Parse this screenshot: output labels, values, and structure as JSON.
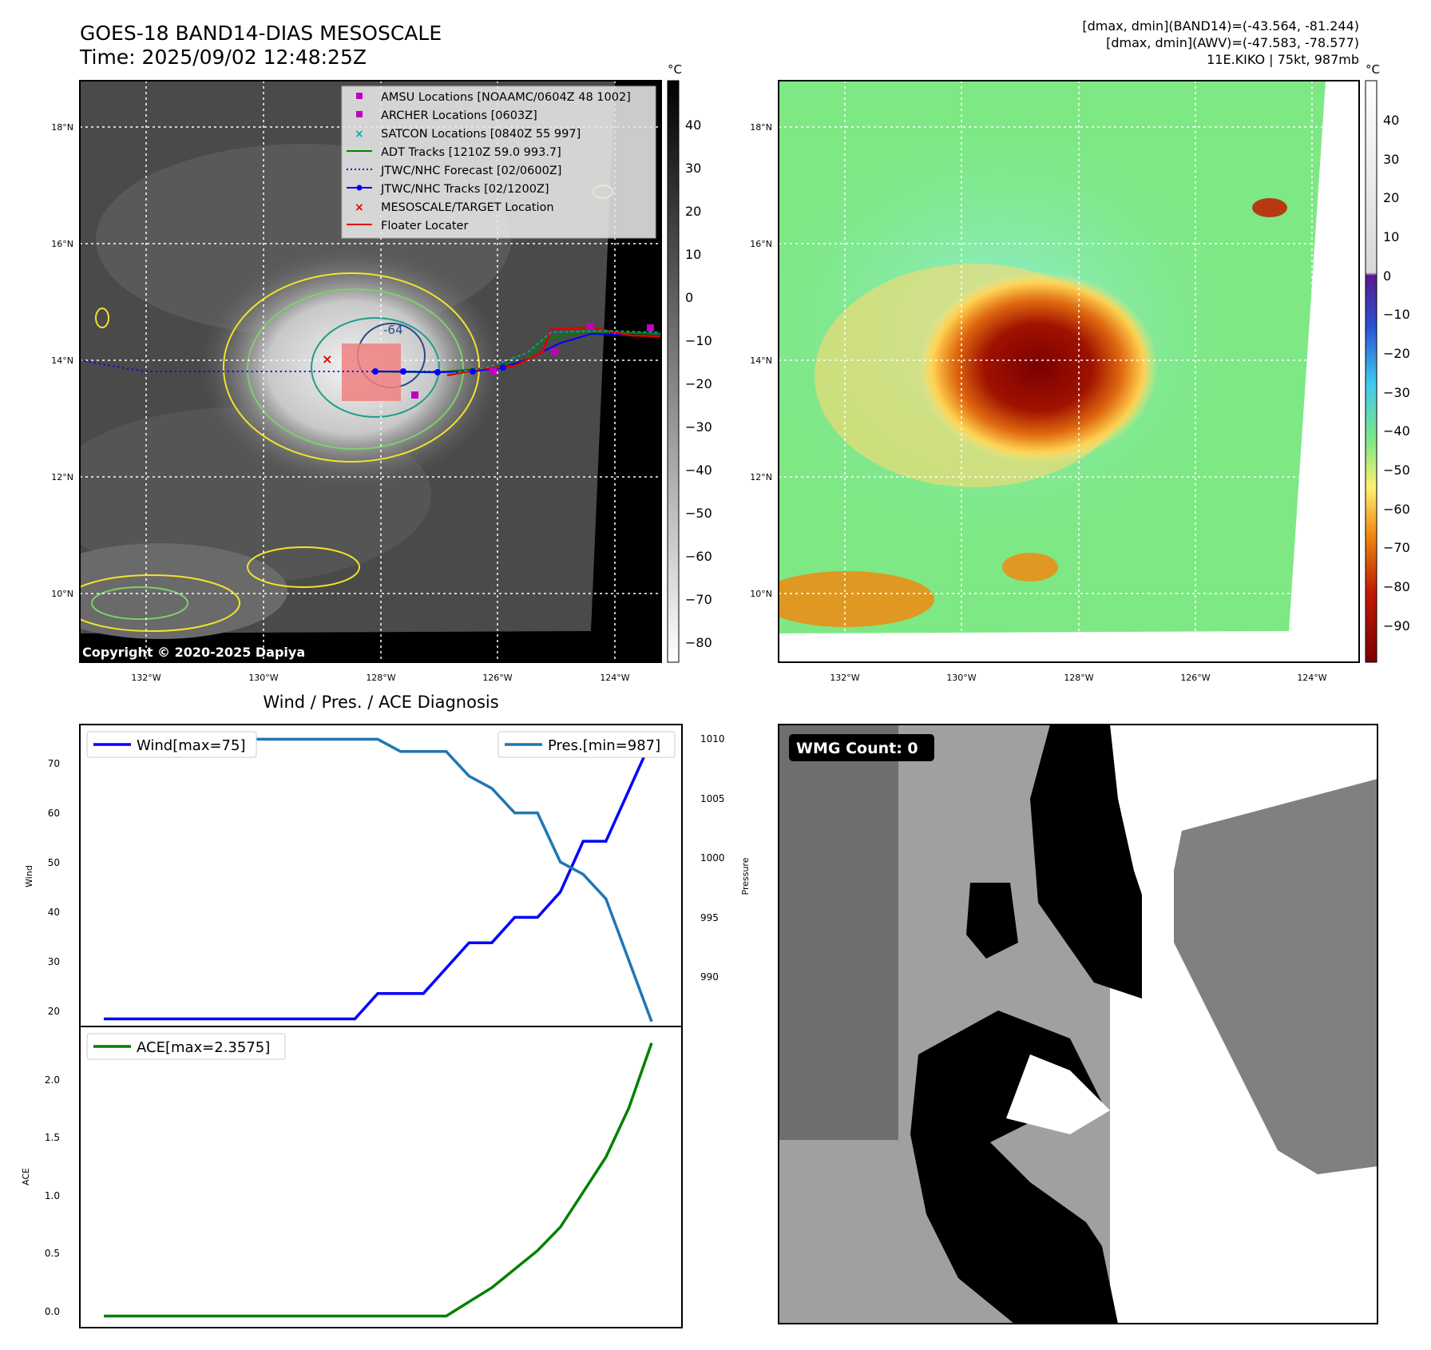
{
  "header": {
    "title_line1": "GOES-18 BAND14-DIAS MESOSCALE",
    "title_line2": "Time: 2025/09/02 12:48:25Z",
    "info_line1": "[dmax, dmin](BAND14)=(-43.564, -81.244)",
    "info_line2": "[dmax, dmin](AWV)=(-47.583, -78.577)",
    "info_line3": "11E.KIKO | 75kt, 987mb"
  },
  "map_ir": {
    "copyright": "Copyright © 2020-2025 Dapiya",
    "lat_labels": [
      "18°N",
      "16°N",
      "14°N",
      "12°N",
      "10°N"
    ],
    "lon_labels": [
      "132°W",
      "130°W",
      "128°W",
      "126°W",
      "124°W"
    ],
    "contour_label": "-64",
    "colorbar_unit": "°C",
    "colorbar_ticks": [
      "40",
      "30",
      "20",
      "10",
      "0",
      "−10",
      "−20",
      "−30",
      "−40",
      "−50",
      "−60",
      "−70",
      "−80"
    ],
    "legend": [
      {
        "label": "AMSU Locations [NOAAMC/0604Z 48 1002]",
        "color": "#c000c0",
        "marker": "square"
      },
      {
        "label": "ARCHER Locations [0603Z]",
        "color": "#c000c0",
        "marker": "square"
      },
      {
        "label": "SATCON Locations [0840Z 55 997]",
        "color": "#00b0b0",
        "marker": "x"
      },
      {
        "label": "ADT Tracks [1210Z 59.0 993.7]",
        "color": "#008000",
        "marker": "line"
      },
      {
        "label": "JTWC/NHC Forecast [02/0600Z]",
        "color": "#0000ff",
        "marker": "dotted"
      },
      {
        "label": "JTWC/NHC Tracks [02/1200Z]",
        "color": "#0000ff",
        "marker": "line-dot"
      },
      {
        "label": "MESOSCALE/TARGET Location",
        "color": "#ff0000",
        "marker": "x"
      },
      {
        "label": "Floater Locater",
        "color": "#ff0000",
        "marker": "line"
      }
    ]
  },
  "map_color": {
    "lat_labels": [
      "18°N",
      "16°N",
      "14°N",
      "12°N",
      "10°N"
    ],
    "lon_labels": [
      "132°W",
      "130°W",
      "128°W",
      "126°W",
      "124°W"
    ],
    "colorbar_unit": "°C",
    "colorbar_ticks": [
      "40",
      "30",
      "20",
      "10",
      "0",
      "−10",
      "−20",
      "−30",
      "−40",
      "−50",
      "−60",
      "−70",
      "−80",
      "−90"
    ]
  },
  "wmg": {
    "badge": "WMG Count: 0"
  },
  "chart_data": {
    "type": "line",
    "title": "Wind / Pres. / ACE Diagnosis",
    "x": [
      0,
      1,
      2,
      3,
      4,
      5,
      6,
      7,
      8,
      9,
      10,
      11,
      12,
      13,
      14,
      15,
      16,
      17,
      18,
      19,
      20,
      21,
      22,
      23,
      24
    ],
    "upper": {
      "ylabel_left": "Wind",
      "ylabel_right": "Pressure",
      "ylim_left": [
        18.5,
        78
      ],
      "ylim_right": [
        986.6,
        1011.2
      ],
      "yticks_left": [
        "70",
        "60",
        "50",
        "40",
        "30",
        "20"
      ],
      "yticks_right": [
        "1010",
        "1005",
        "1000",
        "995",
        "990"
      ],
      "series": [
        {
          "name": "Wind[max=75]",
          "axis": "left",
          "color": "#0000ff",
          "values": [
            20,
            20,
            20,
            20,
            20,
            20,
            20,
            20,
            20,
            20,
            20,
            20,
            25,
            25,
            25,
            30,
            35,
            35,
            40,
            40,
            45,
            55,
            55,
            65,
            75
          ]
        },
        {
          "name": "Pres.[min=987]",
          "axis": "right",
          "color": "#1f77b4",
          "values": [
            1010,
            1010,
            1010,
            1010,
            1010,
            1010,
            1010,
            1010,
            1010,
            1010,
            1010,
            1010,
            1010,
            1009,
            1009,
            1009,
            1007,
            1006,
            1004,
            1004,
            1000,
            999,
            997,
            992,
            987
          ]
        }
      ]
    },
    "lower": {
      "ylabel": "ACE",
      "ylim": [
        -0.1,
        2.5
      ],
      "yticks": [
        "2.0",
        "1.5",
        "1.0",
        "0.5",
        "0.0"
      ],
      "series": [
        {
          "name": "ACE[max=2.3575]",
          "color": "#008000",
          "values": [
            0,
            0,
            0,
            0,
            0,
            0,
            0,
            0,
            0,
            0,
            0,
            0,
            0,
            0,
            0,
            0,
            0.1225,
            0.245,
            0.405,
            0.565,
            0.7675,
            1.07,
            1.3725,
            1.795,
            2.3575
          ]
        }
      ]
    }
  }
}
